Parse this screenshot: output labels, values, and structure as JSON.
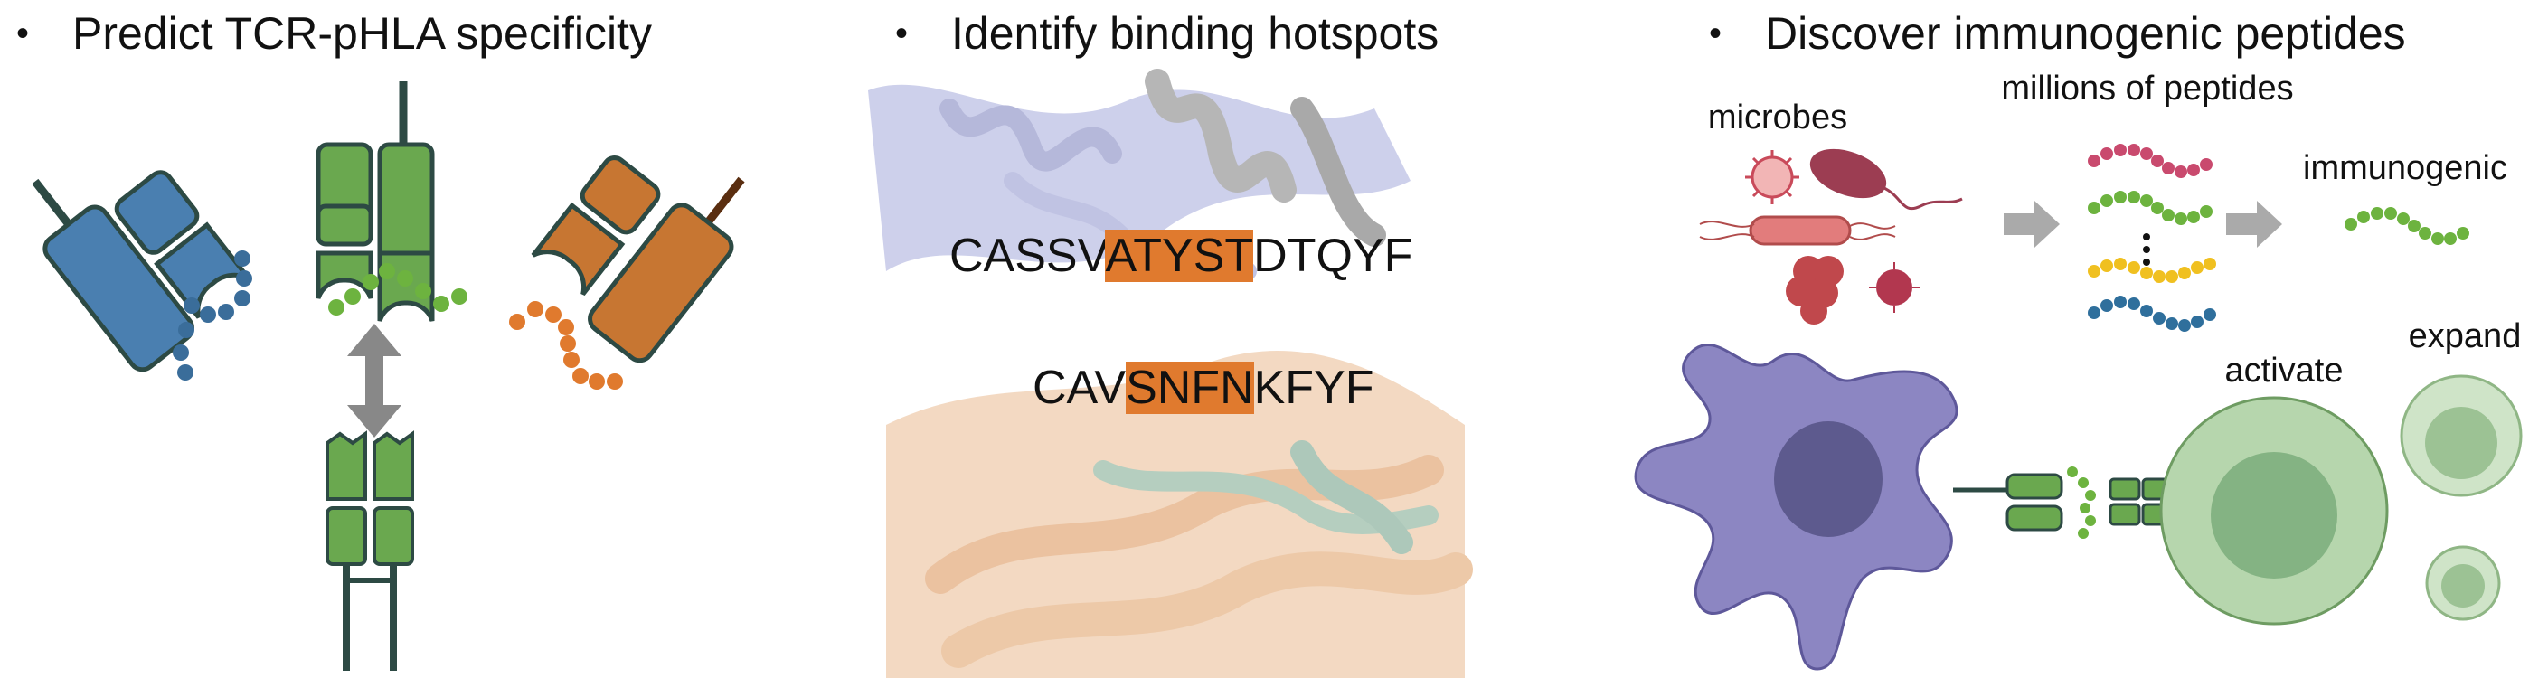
{
  "panels": [
    {
      "bullet": "•",
      "title": "Predict TCR-pHLA specificity"
    },
    {
      "bullet": "•",
      "title": "Identify binding hotspots"
    },
    {
      "bullet": "•",
      "title": "Discover immunogenic peptides"
    }
  ],
  "hotspots": {
    "cdr3b": {
      "pre": "CASSV",
      "hl": "ATYST",
      "post": "DTQYF"
    },
    "cdr3a": {
      "pre": "CAV",
      "hl": "SNFN",
      "post": "KFYF"
    }
  },
  "discover": {
    "microbes": "microbes",
    "millions": "millions of peptides",
    "immunogenic": "immunogenic",
    "activate": "activate",
    "expand": "expand"
  },
  "colors": {
    "tcr_blue": "#4a7fb0",
    "tcr_green": "#6aa84f",
    "tcr_orange": "#c77632",
    "outline": "#2d4a44",
    "highlight": "#e07a2e",
    "dendritic": "#8c86c2",
    "tcell": "#a9cfa0",
    "arrow": "#aaaaaa"
  }
}
